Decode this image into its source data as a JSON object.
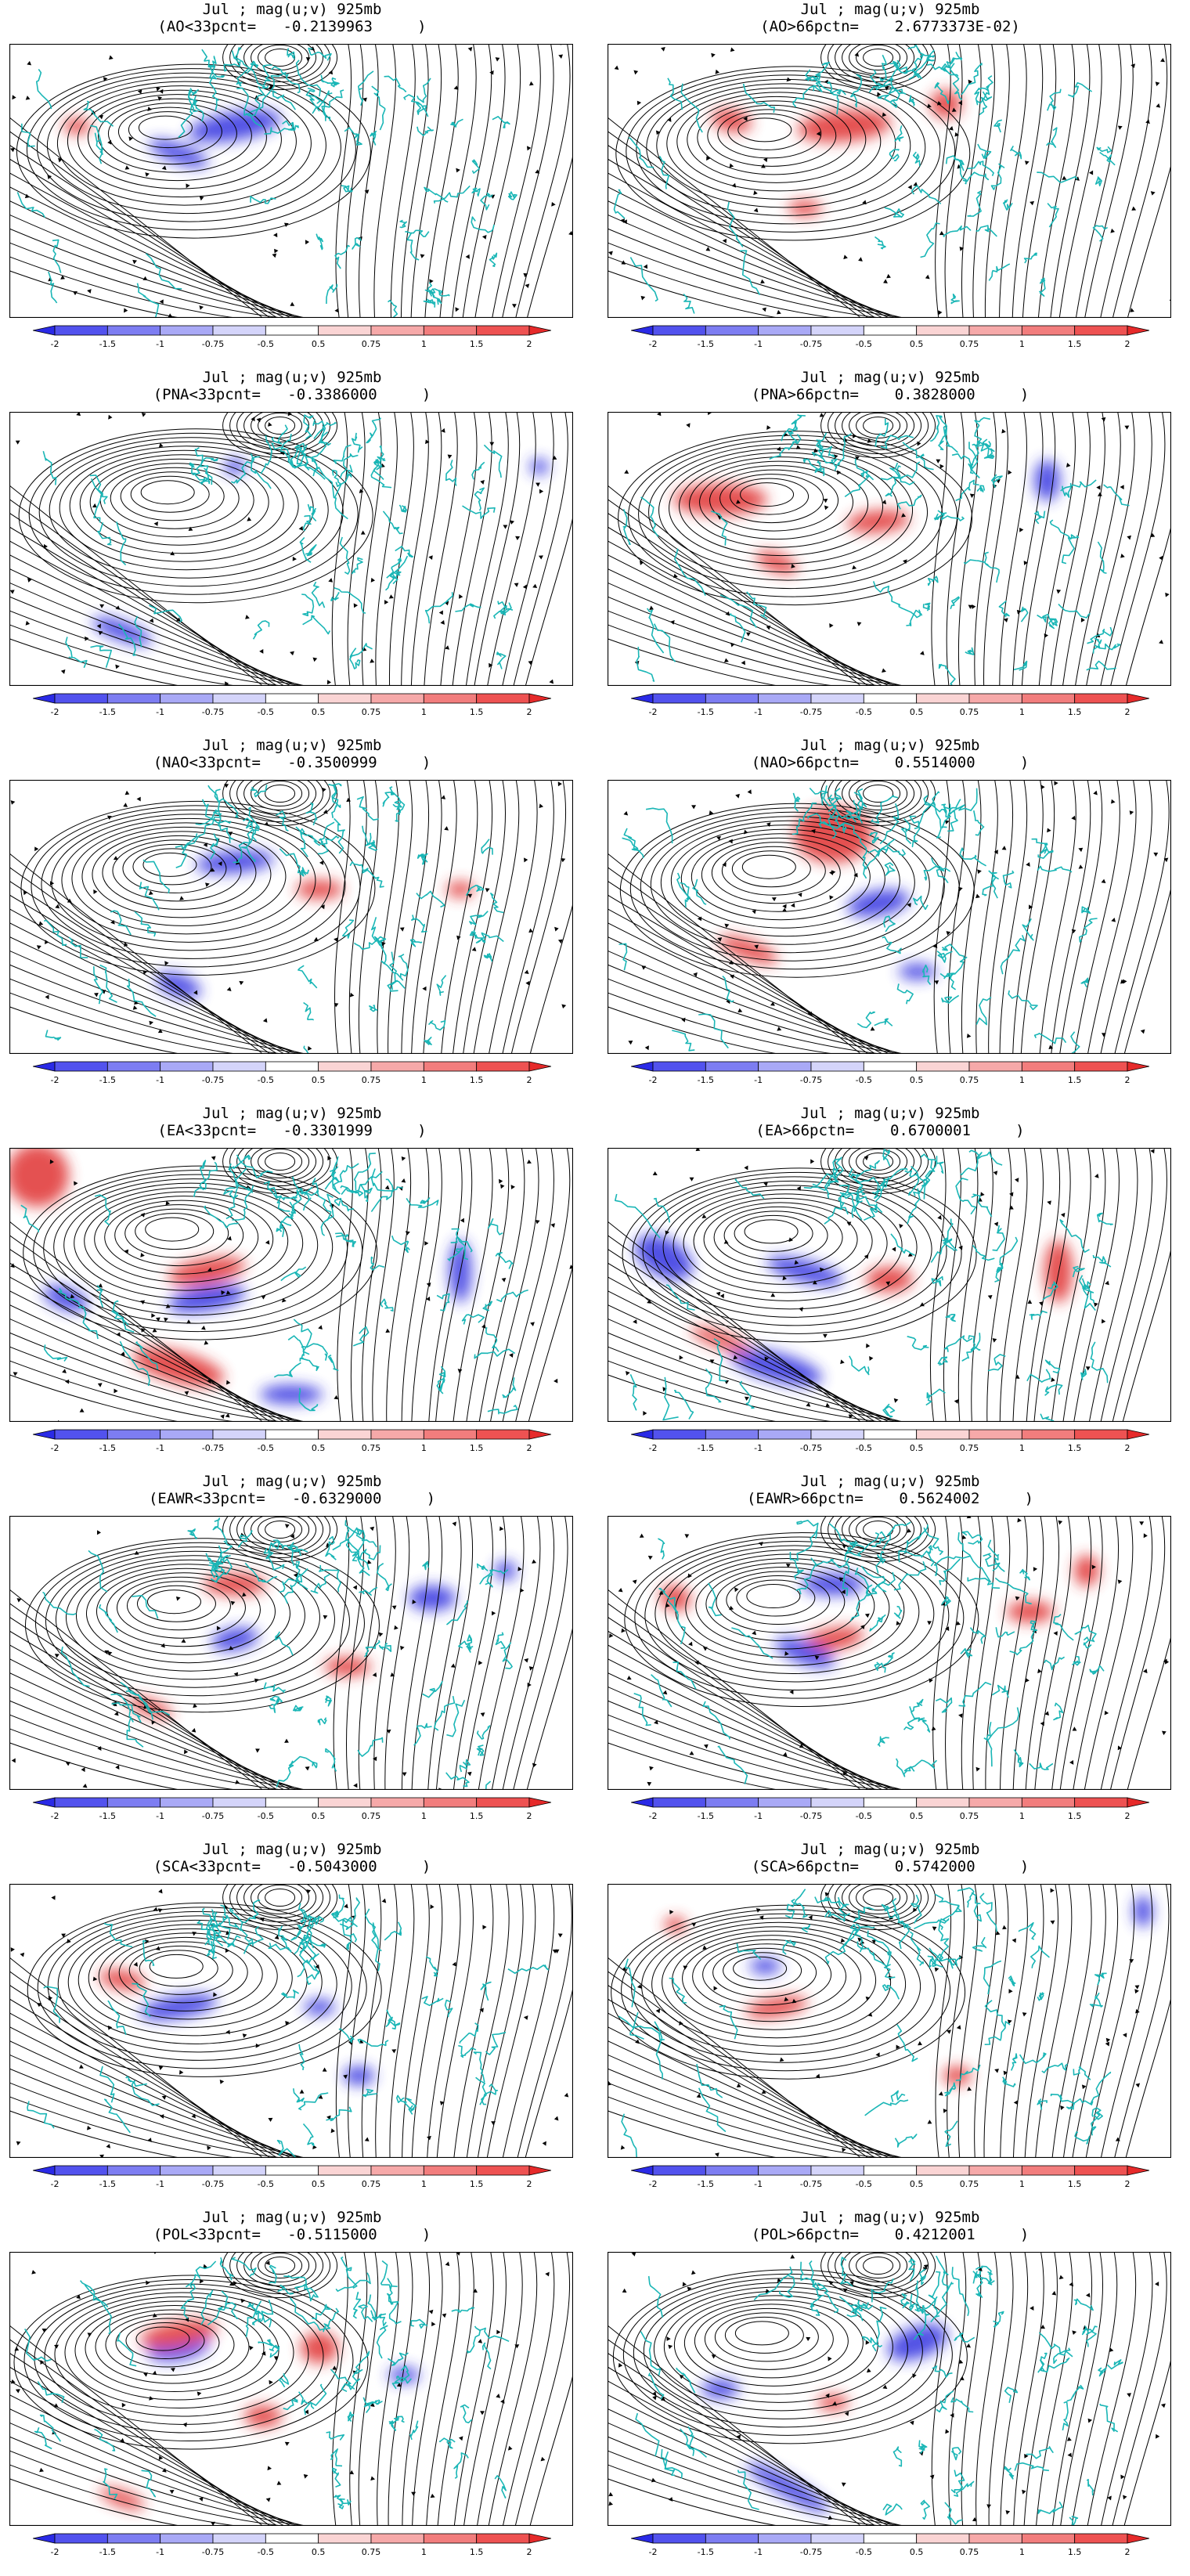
{
  "panels": [
    {
      "line1": "Jul ; mag(u;v) 925mb",
      "line2": "(AO<33pcnt=   -0.2139963     )"
    },
    {
      "line1": "Jul ; mag(u;v) 925mb",
      "line2": "(AO>66pctn=    2.6773373E-02)"
    },
    {
      "line1": "Jul ; mag(u;v) 925mb",
      "line2": "(PNA<33pcnt=   -0.3386000     )"
    },
    {
      "line1": "Jul ; mag(u;v) 925mb",
      "line2": "(PNA>66pctn=    0.3828000     )"
    },
    {
      "line1": "Jul ; mag(u;v) 925mb",
      "line2": "(NAO<33pcnt=   -0.3500999     )"
    },
    {
      "line1": "Jul ; mag(u;v) 925mb",
      "line2": "(NAO>66pctn=    0.5514000     )"
    },
    {
      "line1": "Jul ; mag(u;v) 925mb",
      "line2": "(EA<33pcnt=   -0.3301999     )"
    },
    {
      "line1": "Jul ; mag(u;v) 925mb",
      "line2": "(EA>66pctn=    0.6700001     )"
    },
    {
      "line1": "Jul ; mag(u;v) 925mb",
      "line2": "(EAWR<33pcnt=   -0.6329000     )"
    },
    {
      "line1": "Jul ; mag(u;v) 925mb",
      "line2": "(EAWR>66pctn=    0.5624002     )"
    },
    {
      "line1": "Jul ; mag(u;v) 925mb",
      "line2": "(SCA<33pcnt=   -0.5043000     )"
    },
    {
      "line1": "Jul ; mag(u;v) 925mb",
      "line2": "(SCA>66pctn=    0.5742000     )"
    },
    {
      "line1": "Jul ; mag(u;v) 925mb",
      "line2": "(POL<33pcnt=   -0.5115000     )"
    },
    {
      "line1": "Jul ; mag(u;v) 925mb",
      "line2": "(POL>66pctn=    0.4212001     )"
    }
  ],
  "colorbar": {
    "labels": [
      "-2",
      "-1.5",
      "-1",
      "-0.75",
      "-0.5",
      "0.5",
      "0.75",
      "1",
      "1.5",
      "2"
    ],
    "colors": [
      "#2a2ae6",
      "#5252ee",
      "#7d7df2",
      "#a9a9f6",
      "#d4d4fa",
      "#ffffff",
      "#fad4d4",
      "#f6a9a9",
      "#f27d7d",
      "#ee5252",
      "#e62a2a"
    ]
  },
  "map_style": {
    "coast_color": "#1ab6b6",
    "streamline_color": "#000000",
    "positive_color": "#e03030",
    "negative_color": "#3030e0"
  }
}
